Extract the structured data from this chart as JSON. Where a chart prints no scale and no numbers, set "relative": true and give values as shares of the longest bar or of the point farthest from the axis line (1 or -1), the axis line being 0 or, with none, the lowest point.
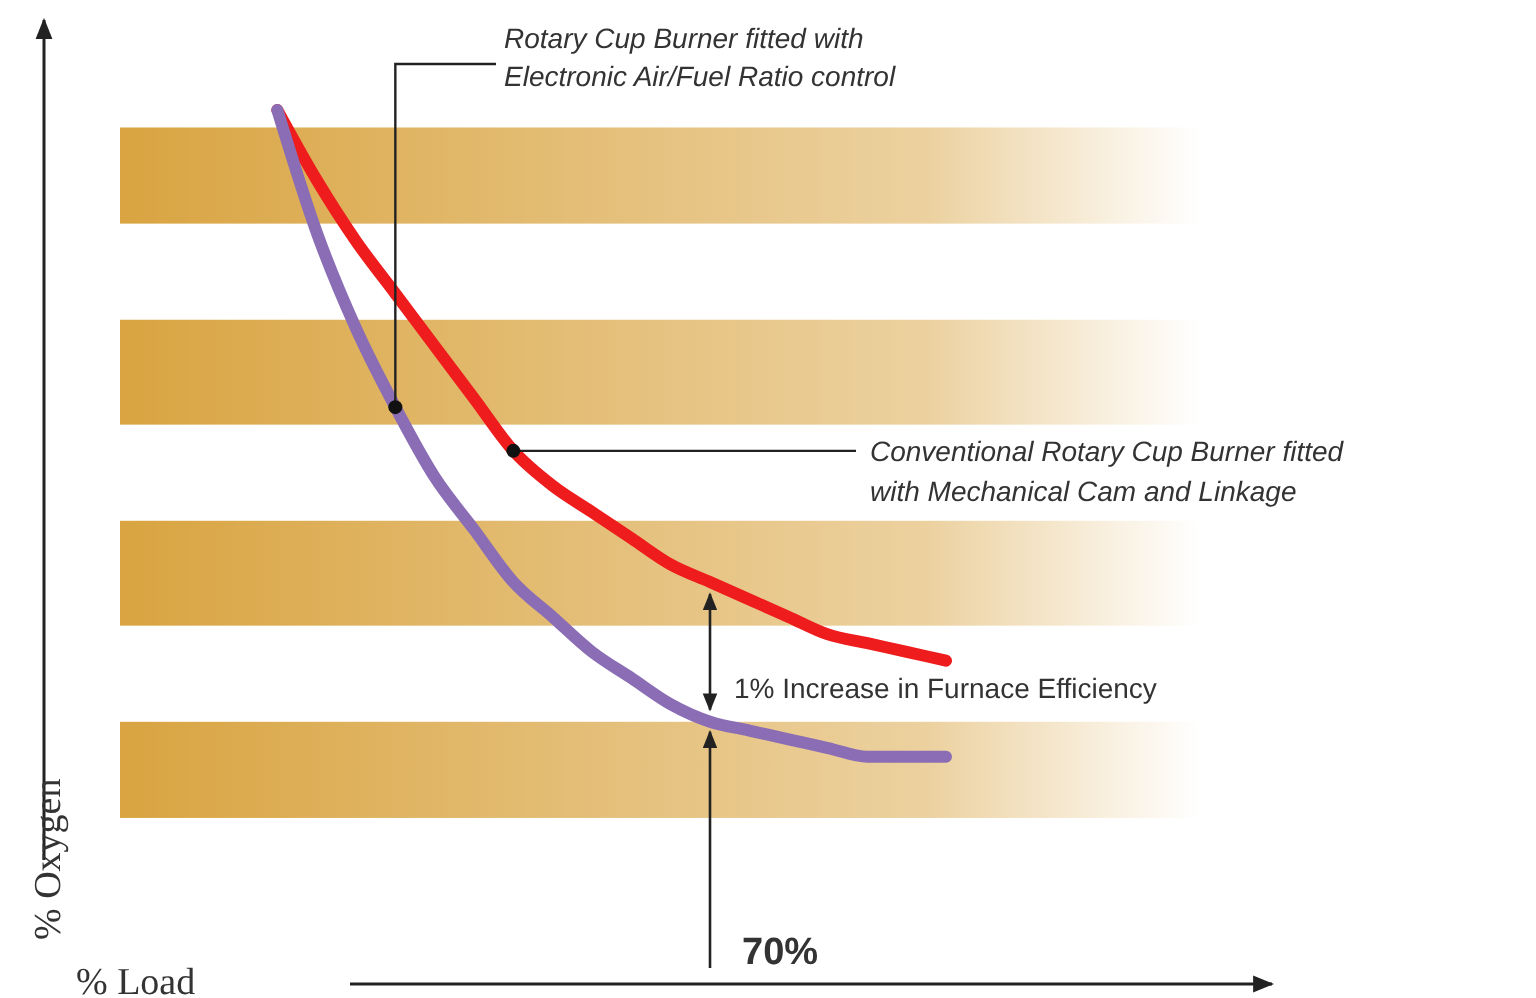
{
  "chart_data": {
    "type": "line",
    "relative": true,
    "xlabel": "% Load",
    "ylabel": "% Oxygen",
    "categories": [
      null,
      null,
      null,
      null,
      null,
      null,
      null,
      null,
      null,
      null,
      null,
      null,
      null,
      null,
      null,
      null,
      null,
      null,
      null,
      null,
      null,
      null,
      null,
      null,
      null
    ],
    "series": [
      {
        "color": "#ee1c1c",
        "values": [
          null,
          null,
          null,
          null,
          1,
          0.92,
          0.85,
          0.79,
          0.73,
          0.67,
          0.61,
          0.57,
          0.54,
          0.51,
          0.48,
          0.46,
          0.44,
          0.42,
          0.4,
          0.39,
          0.38,
          0.37,
          null,
          null,
          null
        ]
      },
      {
        "color": "#8a6db5",
        "values": [
          null,
          null,
          null,
          null,
          1,
          0.86,
          0.75,
          0.66,
          0.58,
          0.52,
          0.46,
          0.42,
          0.38,
          0.35,
          0.32,
          0.3,
          0.29,
          0.28,
          0.27,
          0.26,
          0.26,
          0.26,
          null,
          null,
          null
        ]
      }
    ],
    "bands": [
      {
        "axis": "y",
        "from": 0.87,
        "to": 0.98,
        "color": "#d9a441"
      },
      {
        "axis": "y",
        "from": 0.64,
        "to": 0.76,
        "color": "#d9a441"
      },
      {
        "axis": "y",
        "from": 0.41,
        "to": 0.53,
        "color": "#d9a441"
      },
      {
        "axis": "y",
        "from": 0.19,
        "to": 0.3,
        "color": "#d9a441"
      }
    ],
    "annotations": [
      "Rotary Cup Burner fitted with Electronic Air/Fuel Ratio control",
      "Conventional Rotary Cup Burner fitted with Mechanical Cam and Linkage",
      "1% Increase in Furnace Efficiency",
      "70%"
    ],
    "line_style": "solid"
  }
}
